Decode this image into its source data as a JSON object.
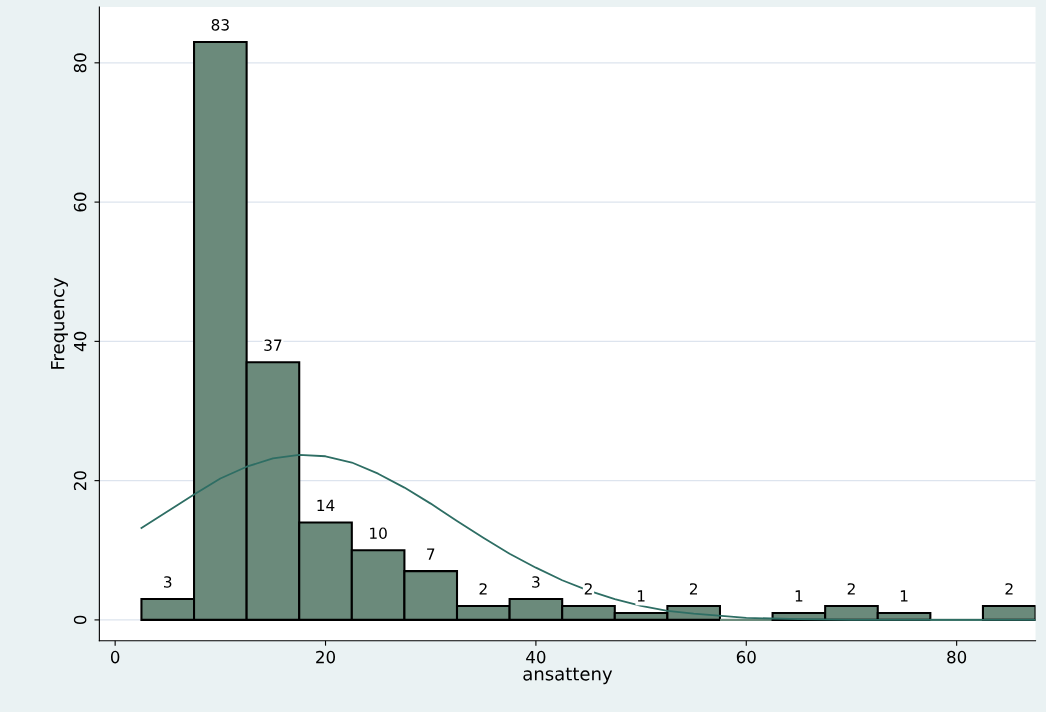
{
  "chart_data": {
    "type": "histogram",
    "xlabel": "ansatteny",
    "ylabel": "Frequency",
    "bins": [
      2.5,
      7.5,
      12.5,
      17.5,
      22.5,
      27.5,
      32.5,
      37.5,
      42.5,
      47.5,
      52.5,
      57.5,
      62.5,
      67.5,
      72.5,
      77.5,
      82.5,
      87.5
    ],
    "values": [
      3,
      83,
      37,
      14,
      10,
      7,
      2,
      3,
      2,
      1,
      2,
      0,
      1,
      2,
      1,
      0,
      2
    ],
    "value_labels": [
      "3",
      "83",
      "37",
      "14",
      "10",
      "7",
      "2",
      "3",
      "2",
      "1",
      "2",
      null,
      "1",
      "2",
      "1",
      null,
      "2"
    ],
    "color": "#6b8a7b",
    "series": [
      {
        "type": "line",
        "color": "#2e6e64",
        "x": [
          2.5,
          5,
          7.5,
          10,
          12.5,
          15,
          17.5,
          20,
          22.5,
          25,
          27.5,
          30,
          32.5,
          35,
          37.5,
          40,
          42.5,
          45,
          47.5,
          50,
          52.5,
          55,
          60,
          65,
          70,
          80,
          87.5
        ],
        "values": [
          13.2,
          15.6,
          18.0,
          20.3,
          22.0,
          23.2,
          23.7,
          23.5,
          22.6,
          21.0,
          19.0,
          16.7,
          14.2,
          11.8,
          9.5,
          7.5,
          5.7,
          4.2,
          3.0,
          2.0,
          1.3,
          0.9,
          0.3,
          0.1,
          0,
          0,
          0
        ]
      }
    ],
    "xlim": [
      -1.5,
      87.5
    ],
    "ylim": [
      -3,
      88
    ],
    "xticks": [
      0,
      20,
      40,
      60,
      80
    ],
    "yticks": [
      0,
      20,
      40,
      60,
      80
    ],
    "grid": "y"
  }
}
